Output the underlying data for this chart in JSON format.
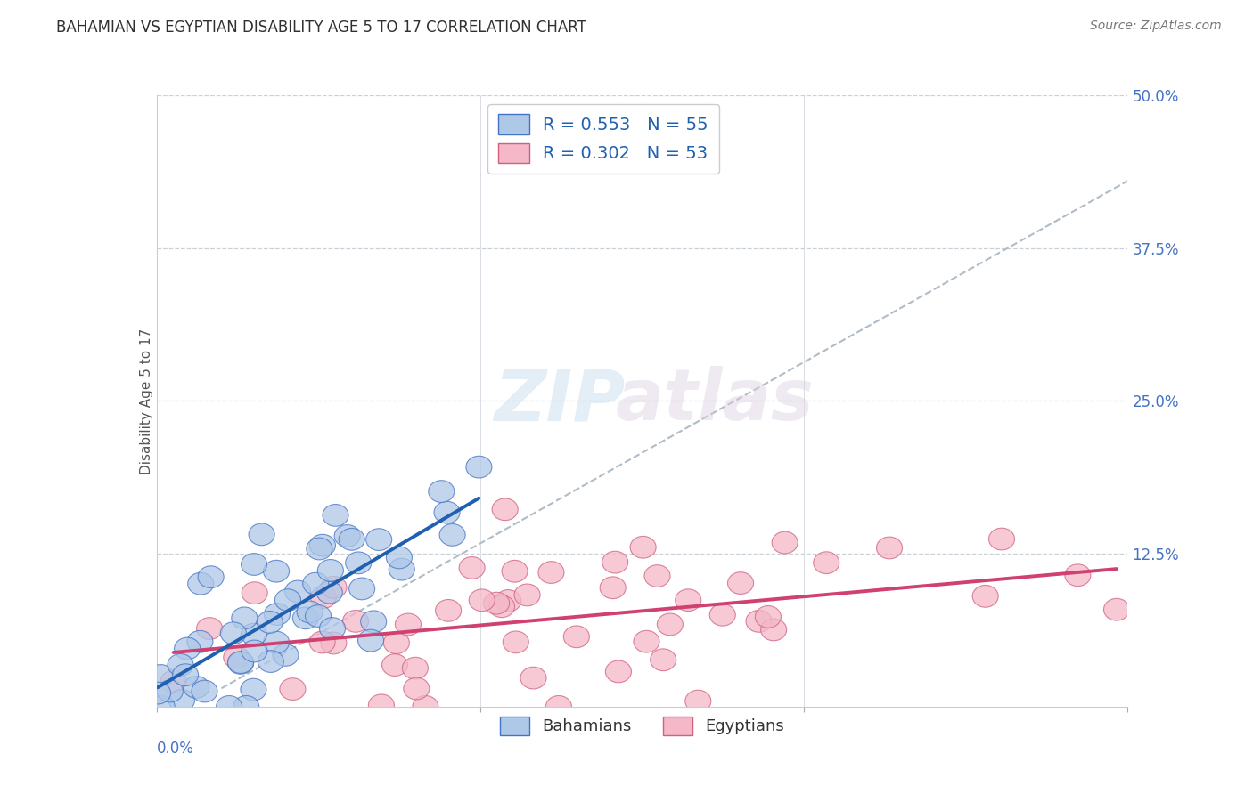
{
  "title": "BAHAMIAN VS EGYPTIAN DISABILITY AGE 5 TO 17 CORRELATION CHART",
  "source": "Source: ZipAtlas.com",
  "ylabel": "Disability Age 5 to 17",
  "xmin": 0.0,
  "xmax": 0.15,
  "ymin": 0.0,
  "ymax": 0.5,
  "ytick_vals": [
    0.0,
    0.125,
    0.25,
    0.375,
    0.5
  ],
  "ytick_labels": [
    "",
    "12.5%",
    "25.0%",
    "37.5%",
    "50.0%"
  ],
  "legend_R_blue": "R = 0.553",
  "legend_N_blue": "N = 55",
  "legend_R_pink": "R = 0.302",
  "legend_N_pink": "N = 53",
  "blue_fill": "#aec8e8",
  "blue_edge": "#4472c4",
  "pink_fill": "#f4b8c8",
  "pink_edge": "#d06080",
  "blue_line": "#2060b0",
  "pink_line": "#d04070",
  "ref_line": "#b0bcc8",
  "legend_blue_label": "Bahamians",
  "legend_pink_label": "Egyptians",
  "background_color": "#ffffff",
  "grid_color": "#c8d0d8",
  "title_color": "#303030",
  "label_color": "#4472c4",
  "title_fontsize": 12,
  "tick_fontsize": 12,
  "blue_scatter_seed": 42,
  "pink_scatter_seed": 99
}
